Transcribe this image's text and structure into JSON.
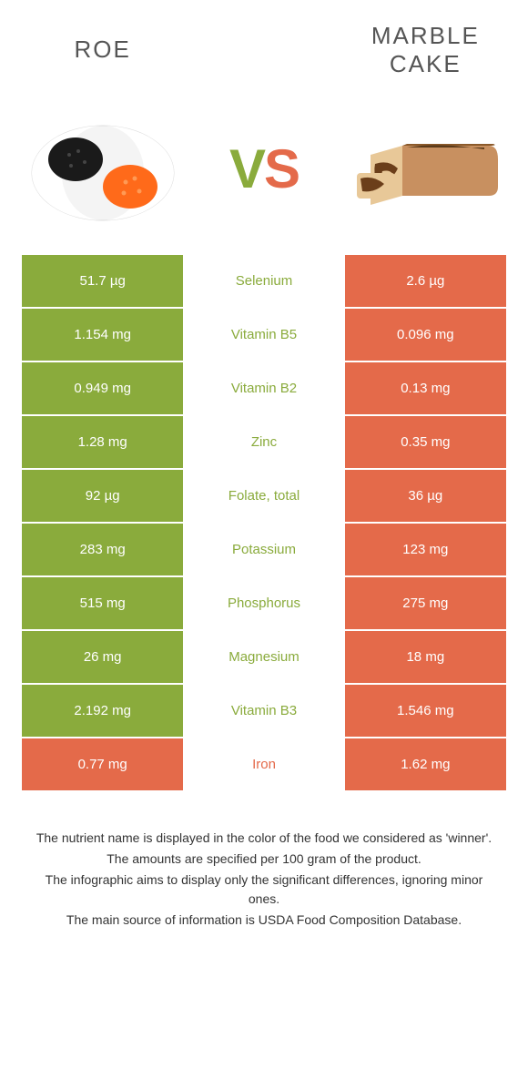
{
  "header": {
    "left_title": "Roe",
    "right_title": "Marble cake",
    "vs_v": "V",
    "vs_s": "S"
  },
  "colors": {
    "green": "#8aab3c",
    "orange": "#e46a4a",
    "bg": "#ffffff",
    "text": "#333333"
  },
  "table": {
    "rows": [
      {
        "nutrient": "Selenium",
        "left": "51.7 µg",
        "right": "2.6 µg",
        "winner": "left"
      },
      {
        "nutrient": "Vitamin B5",
        "left": "1.154 mg",
        "right": "0.096 mg",
        "winner": "left"
      },
      {
        "nutrient": "Vitamin B2",
        "left": "0.949 mg",
        "right": "0.13 mg",
        "winner": "left"
      },
      {
        "nutrient": "Zinc",
        "left": "1.28 mg",
        "right": "0.35 mg",
        "winner": "left"
      },
      {
        "nutrient": "Folate, total",
        "left": "92 µg",
        "right": "36 µg",
        "winner": "left"
      },
      {
        "nutrient": "Potassium",
        "left": "283 mg",
        "right": "123 mg",
        "winner": "left"
      },
      {
        "nutrient": "Phosphorus",
        "left": "515 mg",
        "right": "275 mg",
        "winner": "left"
      },
      {
        "nutrient": "Magnesium",
        "left": "26 mg",
        "right": "18 mg",
        "winner": "left"
      },
      {
        "nutrient": "Vitamin B3",
        "left": "2.192 mg",
        "right": "1.546 mg",
        "winner": "left"
      },
      {
        "nutrient": "Iron",
        "left": "0.77 mg",
        "right": "1.62 mg",
        "winner": "right"
      }
    ]
  },
  "footer": {
    "lines": [
      "The nutrient name is displayed in the color of the food we considered as 'winner'.",
      "The amounts are specified per 100 gram of the product.",
      "The infographic aims to display only the significant differences, ignoring minor ones.",
      "The main source of information is USDA Food Composition Database."
    ]
  }
}
